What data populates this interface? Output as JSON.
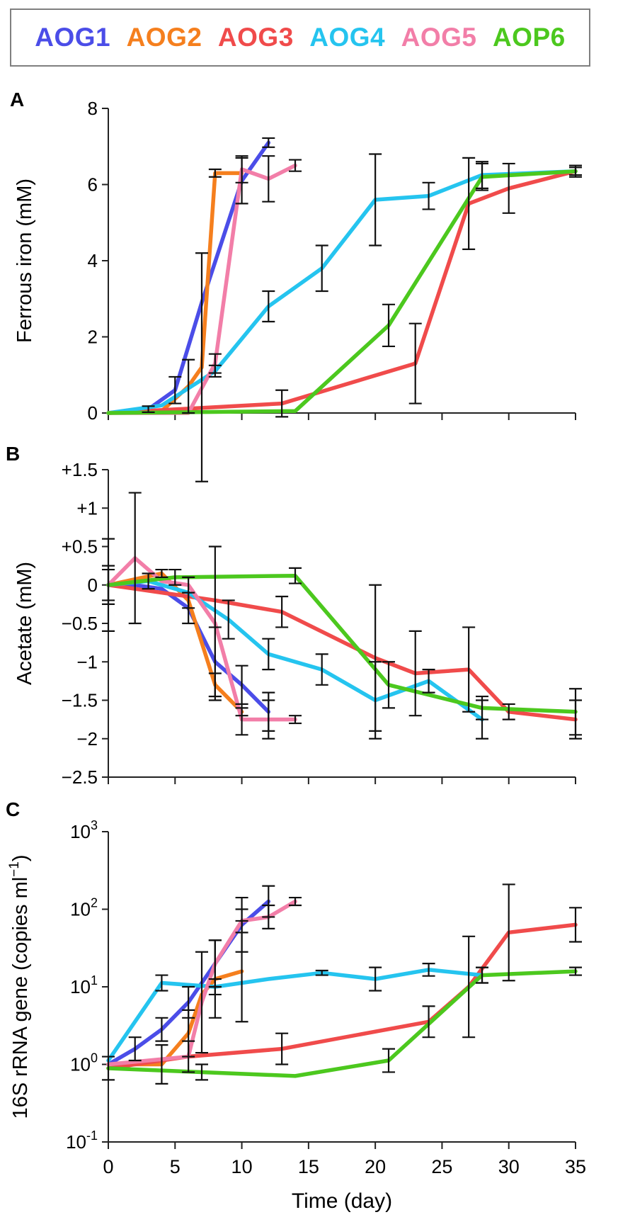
{
  "legend": [
    {
      "key": "AOG1",
      "label": "AOG1",
      "color": "#4b4de8"
    },
    {
      "key": "AOG2",
      "label": "AOG2",
      "color": "#f57f1e"
    },
    {
      "key": "AOG3",
      "label": "AOG3",
      "color": "#f04b4b"
    },
    {
      "key": "AOG4",
      "label": "AOG4",
      "color": "#25c4ef"
    },
    {
      "key": "AOG5",
      "label": "AOG5",
      "color": "#f27ea8"
    },
    {
      "key": "AOP6",
      "label": "AOP6",
      "color": "#4cc81e"
    }
  ],
  "chart_data": [
    {
      "panel": "A",
      "type": "line",
      "ylabel": "Ferrous iron  (mM)",
      "xlabel": "",
      "xlim": [
        0,
        35
      ],
      "ylim": [
        0,
        8
      ],
      "yscale": "linear",
      "yticks": [
        0,
        2,
        4,
        6,
        8
      ],
      "ytick_labels": [
        "0",
        "2",
        "4",
        "6",
        "8"
      ],
      "xticks": [
        0,
        5,
        10,
        15,
        20,
        25,
        30,
        35
      ],
      "xtick_labels": [],
      "series": [
        {
          "name": "AOG1",
          "points": [
            [
              0,
              0
            ],
            [
              3,
              0.1
            ],
            [
              5,
              0.6
            ],
            [
              7,
              2.9
            ],
            [
              10,
              6.1
            ],
            [
              12,
              7.1
            ]
          ],
          "errors": [
            [
              3,
              0.08
            ],
            [
              5,
              0.35
            ],
            [
              8,
              0.4
            ],
            [
              10,
              0.6
            ],
            [
              12,
              0.12
            ]
          ]
        },
        {
          "name": "AOG2",
          "points": [
            [
              0,
              0
            ],
            [
              4,
              0.05
            ],
            [
              6,
              0.7
            ],
            [
              7,
              1.2
            ],
            [
              8,
              6.3
            ],
            [
              10,
              6.3
            ]
          ],
          "errors": [
            [
              6,
              0.7
            ],
            [
              7,
              3.0
            ],
            [
              8,
              0.1
            ]
          ]
        },
        {
          "name": "AOG3",
          "points": [
            [
              0,
              0
            ],
            [
              13,
              0.25
            ],
            [
              23,
              1.3
            ],
            [
              27,
              5.5
            ],
            [
              30,
              5.9
            ],
            [
              35,
              6.35
            ]
          ],
          "errors": [
            [
              13,
              0.35
            ],
            [
              23,
              1.05
            ],
            [
              27,
              1.2
            ],
            [
              30,
              0.65
            ],
            [
              35,
              0.15
            ]
          ]
        },
        {
          "name": "AOG4",
          "points": [
            [
              0,
              0
            ],
            [
              4,
              0.2
            ],
            [
              8,
              1.1
            ],
            [
              12,
              2.8
            ],
            [
              16,
              3.8
            ],
            [
              20,
              5.6
            ],
            [
              24,
              5.7
            ],
            [
              28,
              6.25
            ],
            [
              35,
              6.35
            ]
          ],
          "errors": [
            [
              8,
              0.15
            ],
            [
              12,
              0.4
            ],
            [
              16,
              0.6
            ],
            [
              20,
              1.2
            ],
            [
              24,
              0.35
            ],
            [
              28,
              0.35
            ]
          ]
        },
        {
          "name": "AOG5",
          "points": [
            [
              0,
              0
            ],
            [
              6,
              0
            ],
            [
              8,
              1.3
            ],
            [
              10,
              6.4
            ],
            [
              12,
              6.15
            ],
            [
              14,
              6.5
            ]
          ],
          "errors": [
            [
              8,
              0.25
            ],
            [
              10,
              0.35
            ],
            [
              12,
              0.6
            ],
            [
              14,
              0.15
            ]
          ]
        },
        {
          "name": "AOP6",
          "points": [
            [
              0,
              0
            ],
            [
              14,
              0.05
            ],
            [
              21,
              2.3
            ],
            [
              28,
              6.2
            ],
            [
              35,
              6.35
            ]
          ],
          "errors": [
            [
              21,
              0.55
            ],
            [
              28,
              0.35
            ],
            [
              35,
              0.1
            ]
          ]
        }
      ]
    },
    {
      "panel": "B",
      "type": "line",
      "ylabel": "Acetate (mM)",
      "xlabel": "",
      "xlim": [
        0,
        35
      ],
      "ylim": [
        -2.5,
        1.5
      ],
      "yscale": "linear",
      "yticks": [
        -2.5,
        -2,
        -1.5,
        -1,
        -0.5,
        0,
        0.5,
        1,
        1.5
      ],
      "ytick_labels": [
        "−2.5",
        "−2",
        "−1.5",
        "−1",
        "−0.5",
        "0",
        "+0.5",
        "+1",
        "+1.5"
      ],
      "xticks": [
        0,
        5,
        10,
        15,
        20,
        25,
        30,
        35
      ],
      "xtick_labels": [],
      "series": [
        {
          "name": "AOG1",
          "points": [
            [
              0,
              0
            ],
            [
              2,
              0
            ],
            [
              4,
              -0.05
            ],
            [
              6,
              -0.3
            ],
            [
              8,
              -1.0
            ],
            [
              10,
              -1.3
            ],
            [
              12,
              -1.65
            ]
          ],
          "errors": [
            [
              0,
              0.25
            ],
            [
              6,
              0.2
            ],
            [
              8,
              0.45
            ],
            [
              10,
              0.25
            ],
            [
              12,
              0.25
            ]
          ]
        },
        {
          "name": "AOG2",
          "points": [
            [
              0,
              0
            ],
            [
              4,
              0.15
            ],
            [
              6,
              -0.2
            ],
            [
              8,
              -1.3
            ],
            [
              10,
              -1.65
            ]
          ],
          "errors": [
            [
              0,
              0.2
            ],
            [
              4,
              0.05
            ],
            [
              8,
              0.15
            ],
            [
              10,
              0.05
            ]
          ]
        },
        {
          "name": "AOG3",
          "points": [
            [
              0,
              0
            ],
            [
              2,
              -0.05
            ],
            [
              6,
              -0.15
            ],
            [
              8,
              -0.2
            ],
            [
              13,
              -0.35
            ],
            [
              20,
              -0.95
            ],
            [
              23,
              -1.15
            ],
            [
              27,
              -1.1
            ],
            [
              30,
              -1.65
            ],
            [
              35,
              -1.75
            ]
          ],
          "errors": [
            [
              0,
              0.6
            ],
            [
              13,
              0.2
            ],
            [
              20,
              0.95
            ],
            [
              23,
              0.55
            ],
            [
              27,
              0.55
            ],
            [
              30,
              0.1
            ],
            [
              35,
              0.25
            ]
          ]
        },
        {
          "name": "AOG4",
          "points": [
            [
              0,
              0
            ],
            [
              3,
              0.05
            ],
            [
              6,
              -0.1
            ],
            [
              9,
              -0.45
            ],
            [
              12,
              -0.9
            ],
            [
              16,
              -1.1
            ],
            [
              20,
              -1.5
            ],
            [
              24,
              -1.25
            ],
            [
              28,
              -1.75
            ]
          ],
          "errors": [
            [
              3,
              0.1
            ],
            [
              6,
              0.2
            ],
            [
              9,
              0.25
            ],
            [
              12,
              0.2
            ],
            [
              16,
              0.2
            ],
            [
              20,
              0.5
            ],
            [
              24,
              0.15
            ],
            [
              28,
              0.25
            ]
          ]
        },
        {
          "name": "AOG5",
          "points": [
            [
              0,
              0
            ],
            [
              2,
              0.35
            ],
            [
              4,
              0.05
            ],
            [
              6,
              0
            ],
            [
              8,
              -0.5
            ],
            [
              10,
              -1.75
            ],
            [
              12,
              -1.75
            ],
            [
              14,
              -1.75
            ]
          ],
          "errors": [
            [
              2,
              0.85
            ],
            [
              8,
              1.0
            ],
            [
              10,
              0.2
            ],
            [
              12,
              0.25
            ],
            [
              14,
              0.05
            ]
          ]
        },
        {
          "name": "AOP6",
          "points": [
            [
              0,
              0
            ],
            [
              5,
              0.1
            ],
            [
              14,
              0.12
            ],
            [
              21,
              -1.3
            ],
            [
              28,
              -1.6
            ],
            [
              35,
              -1.65
            ]
          ],
          "errors": [
            [
              5,
              0.1
            ],
            [
              14,
              0.1
            ],
            [
              21,
              0.3
            ],
            [
              28,
              0.15
            ],
            [
              35,
              0.3
            ]
          ]
        }
      ]
    },
    {
      "panel": "C",
      "type": "line",
      "ylabel": "16S rRNA gene (copies ml",
      "ylabel_sup": "−1",
      "ylabel_end": ")",
      "xlabel": "Time (day)",
      "xlim": [
        0,
        35
      ],
      "ylim": [
        -1,
        3
      ],
      "yscale": "log10",
      "yticks": [
        -1,
        0,
        1,
        2,
        3
      ],
      "ytick_labels": [
        [
          "10",
          "-1"
        ],
        [
          "10",
          "0"
        ],
        [
          "10",
          "1"
        ],
        [
          "10",
          "2"
        ],
        [
          "10",
          "3"
        ]
      ],
      "xticks": [
        0,
        5,
        10,
        15,
        20,
        25,
        30,
        35
      ],
      "xtick_labels": [
        "0",
        "5",
        "10",
        "15",
        "20",
        "25",
        "30",
        "35"
      ],
      "series": [
        {
          "name": "AOG1",
          "points": [
            [
              0,
              0
            ],
            [
              2,
              0.2
            ],
            [
              4,
              0.45
            ],
            [
              6,
              0.8
            ],
            [
              8,
              1.3
            ],
            [
              10,
              1.8
            ],
            [
              12,
              2.1
            ]
          ],
          "errors": [
            [
              2,
              0.15
            ],
            [
              4,
              0.15
            ],
            [
              6,
              0.2
            ],
            [
              8,
              0.3
            ],
            [
              10,
              0.35
            ],
            [
              12,
              0.2
            ]
          ]
        },
        {
          "name": "AOG2",
          "points": [
            [
              0,
              0
            ],
            [
              4,
              0
            ],
            [
              6,
              0.4
            ],
            [
              7,
              0.9
            ],
            [
              8,
              1.1
            ],
            [
              10,
              1.2
            ]
          ],
          "errors": [
            [
              4,
              0.25
            ],
            [
              6,
              0.3
            ],
            [
              8,
              0.5
            ],
            [
              10,
              0.65
            ]
          ]
        },
        {
          "name": "AOG3",
          "points": [
            [
              0,
              -0.05
            ],
            [
              6,
              0.1
            ],
            [
              13,
              0.2
            ],
            [
              24,
              0.55
            ],
            [
              27,
              1.0
            ],
            [
              30,
              1.7
            ],
            [
              35,
              1.8
            ]
          ],
          "errors": [
            [
              0,
              0.15
            ],
            [
              6,
              0.2
            ],
            [
              13,
              0.2
            ],
            [
              24,
              0.2
            ],
            [
              27,
              0.65
            ],
            [
              30,
              0.62
            ],
            [
              35,
              0.22
            ]
          ]
        },
        {
          "name": "AOG4",
          "points": [
            [
              0,
              0.05
            ],
            [
              4,
              1.05
            ],
            [
              8,
              1.0
            ],
            [
              12,
              1.1
            ],
            [
              16,
              1.18
            ],
            [
              20,
              1.1
            ],
            [
              24,
              1.22
            ],
            [
              28,
              1.15
            ]
          ],
          "errors": [
            [
              4,
              0.1
            ],
            [
              8,
              0.1
            ],
            [
              16,
              0.03
            ],
            [
              20,
              0.15
            ],
            [
              24,
              0.08
            ],
            [
              28,
              0.1
            ]
          ]
        },
        {
          "name": "AOG5",
          "points": [
            [
              0,
              0
            ],
            [
              6,
              0.1
            ],
            [
              7,
              0.8
            ],
            [
              8,
              1.3
            ],
            [
              10,
              1.85
            ],
            [
              12,
              1.9
            ],
            [
              14,
              2.1
            ]
          ],
          "errors": [
            [
              7,
              0.65
            ],
            [
              8,
              0.3
            ],
            [
              10,
              0.15
            ],
            [
              12,
              0.15
            ],
            [
              14,
              0.05
            ]
          ]
        },
        {
          "name": "AOP6",
          "points": [
            [
              0,
              -0.05
            ],
            [
              7,
              -0.1
            ],
            [
              14,
              -0.15
            ],
            [
              21,
              0.05
            ],
            [
              28,
              1.15
            ],
            [
              35,
              1.2
            ]
          ],
          "errors": [
            [
              7,
              0.1
            ],
            [
              21,
              0.15
            ],
            [
              28,
              0.1
            ],
            [
              35,
              0.05
            ]
          ]
        }
      ]
    }
  ]
}
